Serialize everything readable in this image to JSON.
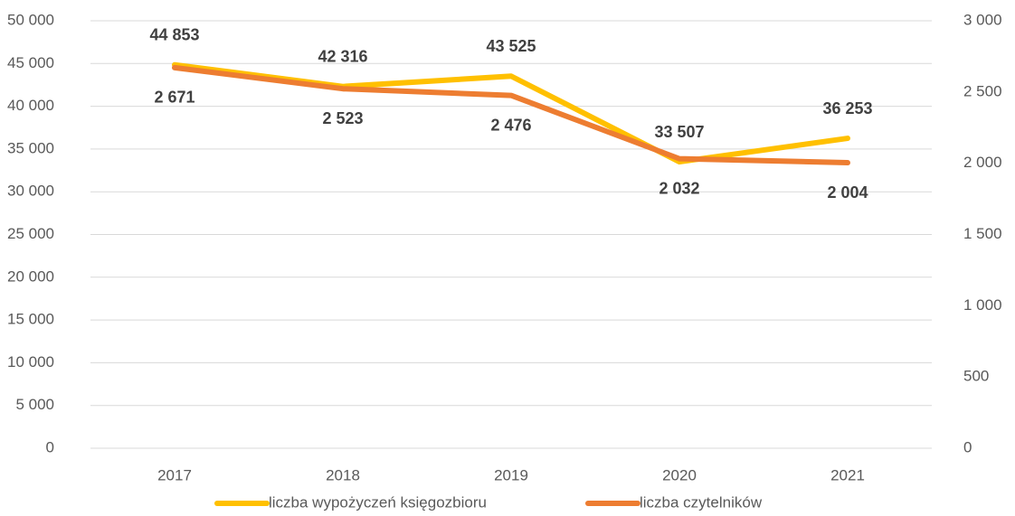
{
  "chart_data": {
    "type": "line",
    "categories": [
      "2017",
      "2018",
      "2019",
      "2020",
      "2021"
    ],
    "series": [
      {
        "name": "liczba wypożyczeń księgozbioru",
        "color": "#ffc000",
        "values": [
          44853,
          42316,
          43525,
          33507,
          36253
        ],
        "value_labels": [
          "44 853",
          "42 316",
          "43 525",
          "33 507",
          "36 253"
        ]
      },
      {
        "name": "liczba czytelników",
        "color": "#ed7d31",
        "axis": "y2",
        "values": [
          2671,
          2523,
          2476,
          2032,
          2004
        ],
        "value_labels": [
          "2 671",
          "2 523",
          "2 476",
          "2 032",
          "2 004"
        ]
      }
    ],
    "ylim": [
      0,
      50000
    ],
    "yticks": [
      0,
      {
        "value": 5000,
        "label": "5 000"
      },
      {
        "value": 10000,
        "label": "10 000"
      },
      {
        "value": 15000,
        "label": "15 000"
      },
      {
        "value": 20000,
        "label": "20 000"
      },
      {
        "value": 25000,
        "label": "25 000"
      },
      {
        "value": 30000,
        "label": "30 000"
      },
      {
        "value": 35000,
        "label": "35 000"
      },
      {
        "value": 40000,
        "label": "40 000"
      },
      {
        "value": 45000,
        "label": "45 000"
      },
      {
        "value": 50000,
        "label": "50 000"
      }
    ],
    "y2lim": [
      0,
      3000
    ],
    "y2ticks": [
      0,
      500,
      {
        "value": 1000,
        "label": "1 000"
      },
      {
        "value": 1500,
        "label": "1 500"
      },
      {
        "value": 2000,
        "label": "2 000"
      },
      {
        "value": 2500,
        "label": "2 500"
      },
      {
        "value": 3000,
        "label": "3 000"
      }
    ],
    "grid": true,
    "legend": "bottom"
  }
}
